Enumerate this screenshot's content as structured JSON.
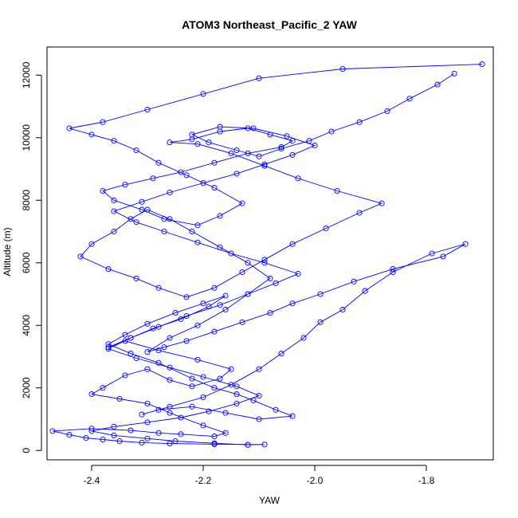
{
  "chart_data": {
    "type": "line",
    "title": "ATOM3 Northeast_Pacific_2 YAW",
    "xlabel": "YAW",
    "ylabel": "Altitude (m)",
    "xlim": [
      -2.48,
      -1.68
    ],
    "ylim": [
      -300,
      12900
    ],
    "xticks": [
      -2.4,
      -2.2,
      -2.0,
      -1.8
    ],
    "yticks": [
      0,
      2000,
      4000,
      6000,
      8000,
      10000,
      12000
    ],
    "grid": false,
    "legend": "none",
    "style": "points connected by lines, open circle markers",
    "colors": {
      "series": "#0000ff",
      "axis": "#000000",
      "background": "#ffffff"
    },
    "series": [
      {
        "x": [
          -2.12,
          -2.09,
          -2.18,
          -2.26,
          -2.31,
          -2.35,
          -2.38,
          -2.41,
          -2.44,
          -2.47,
          -2.4,
          -2.33,
          -2.28,
          -2.24,
          -2.18,
          -2.16,
          -2.2,
          -2.26,
          -2.3,
          -2.35,
          -2.4,
          -2.38,
          -2.34,
          -2.3,
          -2.26,
          -2.22,
          -2.17,
          -2.15,
          -2.21,
          -2.28,
          -2.34,
          -2.37,
          -2.33,
          -2.29,
          -2.24,
          -2.19,
          -2.16,
          -2.2,
          -2.25,
          -2.3,
          -2.34,
          -2.37,
          -2.33,
          -2.28,
          -2.22,
          -2.18,
          -2.14,
          -2.11,
          -2.07,
          -2.04,
          -2.1,
          -2.16,
          -2.22,
          -2.28,
          -2.31,
          -2.26,
          -2.2,
          -2.15,
          -2.1,
          -2.06,
          -2.02,
          -1.99,
          -1.95,
          -1.91,
          -1.86,
          -1.79,
          -1.73,
          -1.77,
          -1.86,
          -1.93,
          -1.99,
          -2.04,
          -2.08,
          -2.13,
          -2.18,
          -2.23,
          -2.27,
          -2.3,
          -2.26,
          -2.21,
          -2.16,
          -2.12,
          -2.08,
          -2.12,
          -2.17,
          -2.22,
          -2.26,
          -2.3,
          -2.33,
          -2.36,
          -2.4,
          -2.42,
          -2.37,
          -2.32,
          -2.28,
          -2.23,
          -2.18,
          -2.13,
          -2.09,
          -2.04,
          -1.98,
          -1.92,
          -1.88,
          -1.96,
          -2.03,
          -2.09,
          -2.15,
          -2.21,
          -2.26,
          -2.22,
          -2.17,
          -2.12,
          -2.08,
          -2.04,
          -2.06,
          -2.12,
          -2.18,
          -2.24,
          -2.29,
          -2.34,
          -2.38,
          -2.36,
          -2.31,
          -2.27,
          -2.21,
          -2.17,
          -2.13,
          -2.18,
          -2.23,
          -2.28,
          -2.32,
          -2.36,
          -2.4,
          -2.44,
          -2.38,
          -2.3,
          -2.2,
          -2.1,
          -1.95,
          -1.7
        ],
        "y": [
          180,
          190,
          200,
          220,
          250,
          300,
          350,
          400,
          500,
          620,
          700,
          640,
          560,
          520,
          450,
          560,
          800,
          1200,
          1500,
          1650,
          1800,
          2000,
          2400,
          2600,
          2250,
          2050,
          2300,
          2600,
          2900,
          3200,
          3500,
          3300,
          3600,
          3900,
          4200,
          4600,
          4950,
          4700,
          4400,
          4050,
          3700,
          3400,
          3100,
          2800,
          2300,
          2000,
          1800,
          1600,
          1300,
          1100,
          1000,
          1200,
          1400,
          1300,
          1150,
          1400,
          1700,
          2100,
          2600,
          3100,
          3600,
          4100,
          4500,
          5100,
          5700,
          6300,
          6600,
          6200,
          5800,
          5400,
          5000,
          4700,
          4400,
          4100,
          3800,
          3500,
          3300,
          3150,
          3600,
          4000,
          4500,
          5000,
          5500,
          6000,
          6500,
          7000,
          7400,
          7700,
          7400,
          7000,
          6600,
          6200,
          5800,
          5500,
          5200,
          4900,
          5200,
          5700,
          6100,
          6600,
          7100,
          7600,
          7900,
          8300,
          8700,
          9100,
          9500,
          9800,
          9850,
          9950,
          10200,
          10300,
          10100,
          9900,
          9700,
          9500,
          9200,
          8900,
          8700,
          8500,
          8300,
          8000,
          7700,
          7400,
          7200,
          7500,
          7900,
          8400,
          8800,
          9200,
          9600,
          9900,
          10100,
          10300,
          10500,
          10900,
          11400,
          11900,
          12200,
          12350
        ]
      },
      {
        "x": [
          -2.12,
          -2.18,
          -2.25,
          -2.3,
          -2.36,
          -2.4,
          -2.36,
          -2.3,
          -2.24,
          -2.19,
          -2.14,
          -2.1,
          -2.14,
          -2.2,
          -2.26,
          -2.32,
          -2.37,
          -2.33,
          -2.28,
          -2.23,
          -2.17,
          -2.12,
          -2.07,
          -2.03,
          -2.09,
          -2.15,
          -2.21,
          -2.27,
          -2.32,
          -2.36,
          -2.31,
          -2.26,
          -2.2,
          -2.14,
          -2.09,
          -2.04,
          -2.0,
          -2.05,
          -2.11,
          -2.17,
          -2.22,
          -2.19,
          -2.14,
          -2.1,
          -2.06,
          -2.01,
          -1.97,
          -1.92,
          -1.87,
          -1.83,
          -1.78,
          -1.75
        ],
        "y": [
          180,
          230,
          300,
          380,
          480,
          620,
          760,
          900,
          1050,
          1250,
          1500,
          1750,
          2050,
          2350,
          2650,
          2950,
          3250,
          3600,
          3950,
          4300,
          4650,
          5000,
          5350,
          5650,
          6000,
          6300,
          6650,
          7000,
          7300,
          7650,
          7950,
          8250,
          8550,
          8850,
          9150,
          9450,
          9750,
          10050,
          10300,
          10350,
          10100,
          9850,
          9600,
          9400,
          9650,
          9900,
          10200,
          10500,
          10850,
          11250,
          11700,
          12050
        ]
      }
    ]
  }
}
